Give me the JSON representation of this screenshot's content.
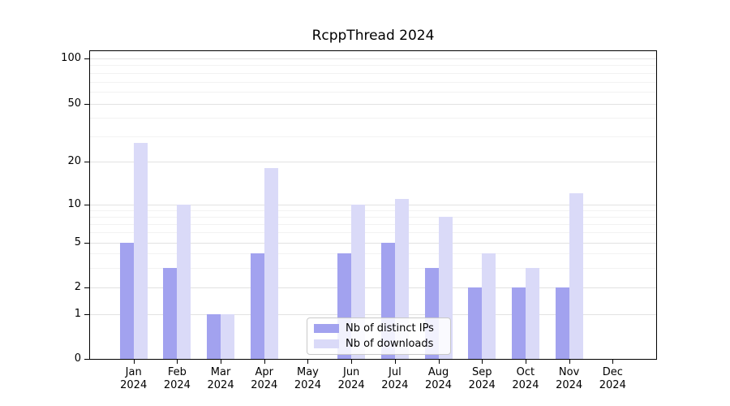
{
  "figure": {
    "title": "RcppThread 2024",
    "background": "#ffffff"
  },
  "legend": {
    "position": "lower center",
    "items": [
      {
        "label": "Nb of distinct IPs",
        "color": "#a2a2ef"
      },
      {
        "label": "Nb of downloads",
        "color": "#dadaf8"
      }
    ]
  },
  "chart_data": {
    "type": "bar",
    "title": "RcppThread 2024",
    "x_months": [
      "Jan",
      "Feb",
      "Mar",
      "Apr",
      "May",
      "Jun",
      "Jul",
      "Aug",
      "Sep",
      "Oct",
      "Nov",
      "Dec"
    ],
    "x_year": "2024",
    "yscale": "log with zero baseline",
    "yticks": [
      0,
      1,
      2,
      5,
      10,
      20,
      50,
      100
    ],
    "minor_gridlines": [
      3,
      4,
      6,
      7,
      8,
      9,
      30,
      40,
      60,
      70,
      80,
      90
    ],
    "ylim": [
      0,
      100
    ],
    "grid": true,
    "legend_position": "lower center",
    "series": [
      {
        "name": "Nb of distinct IPs",
        "color": "#a2a2ef",
        "values": [
          5,
          3,
          1,
          4,
          0,
          4,
          5,
          3,
          2,
          2,
          2,
          0
        ]
      },
      {
        "name": "Nb of downloads",
        "color": "#dadaf8",
        "values": [
          27,
          10,
          1,
          18,
          0,
          10,
          11,
          8,
          4,
          3,
          12,
          0
        ]
      }
    ]
  }
}
